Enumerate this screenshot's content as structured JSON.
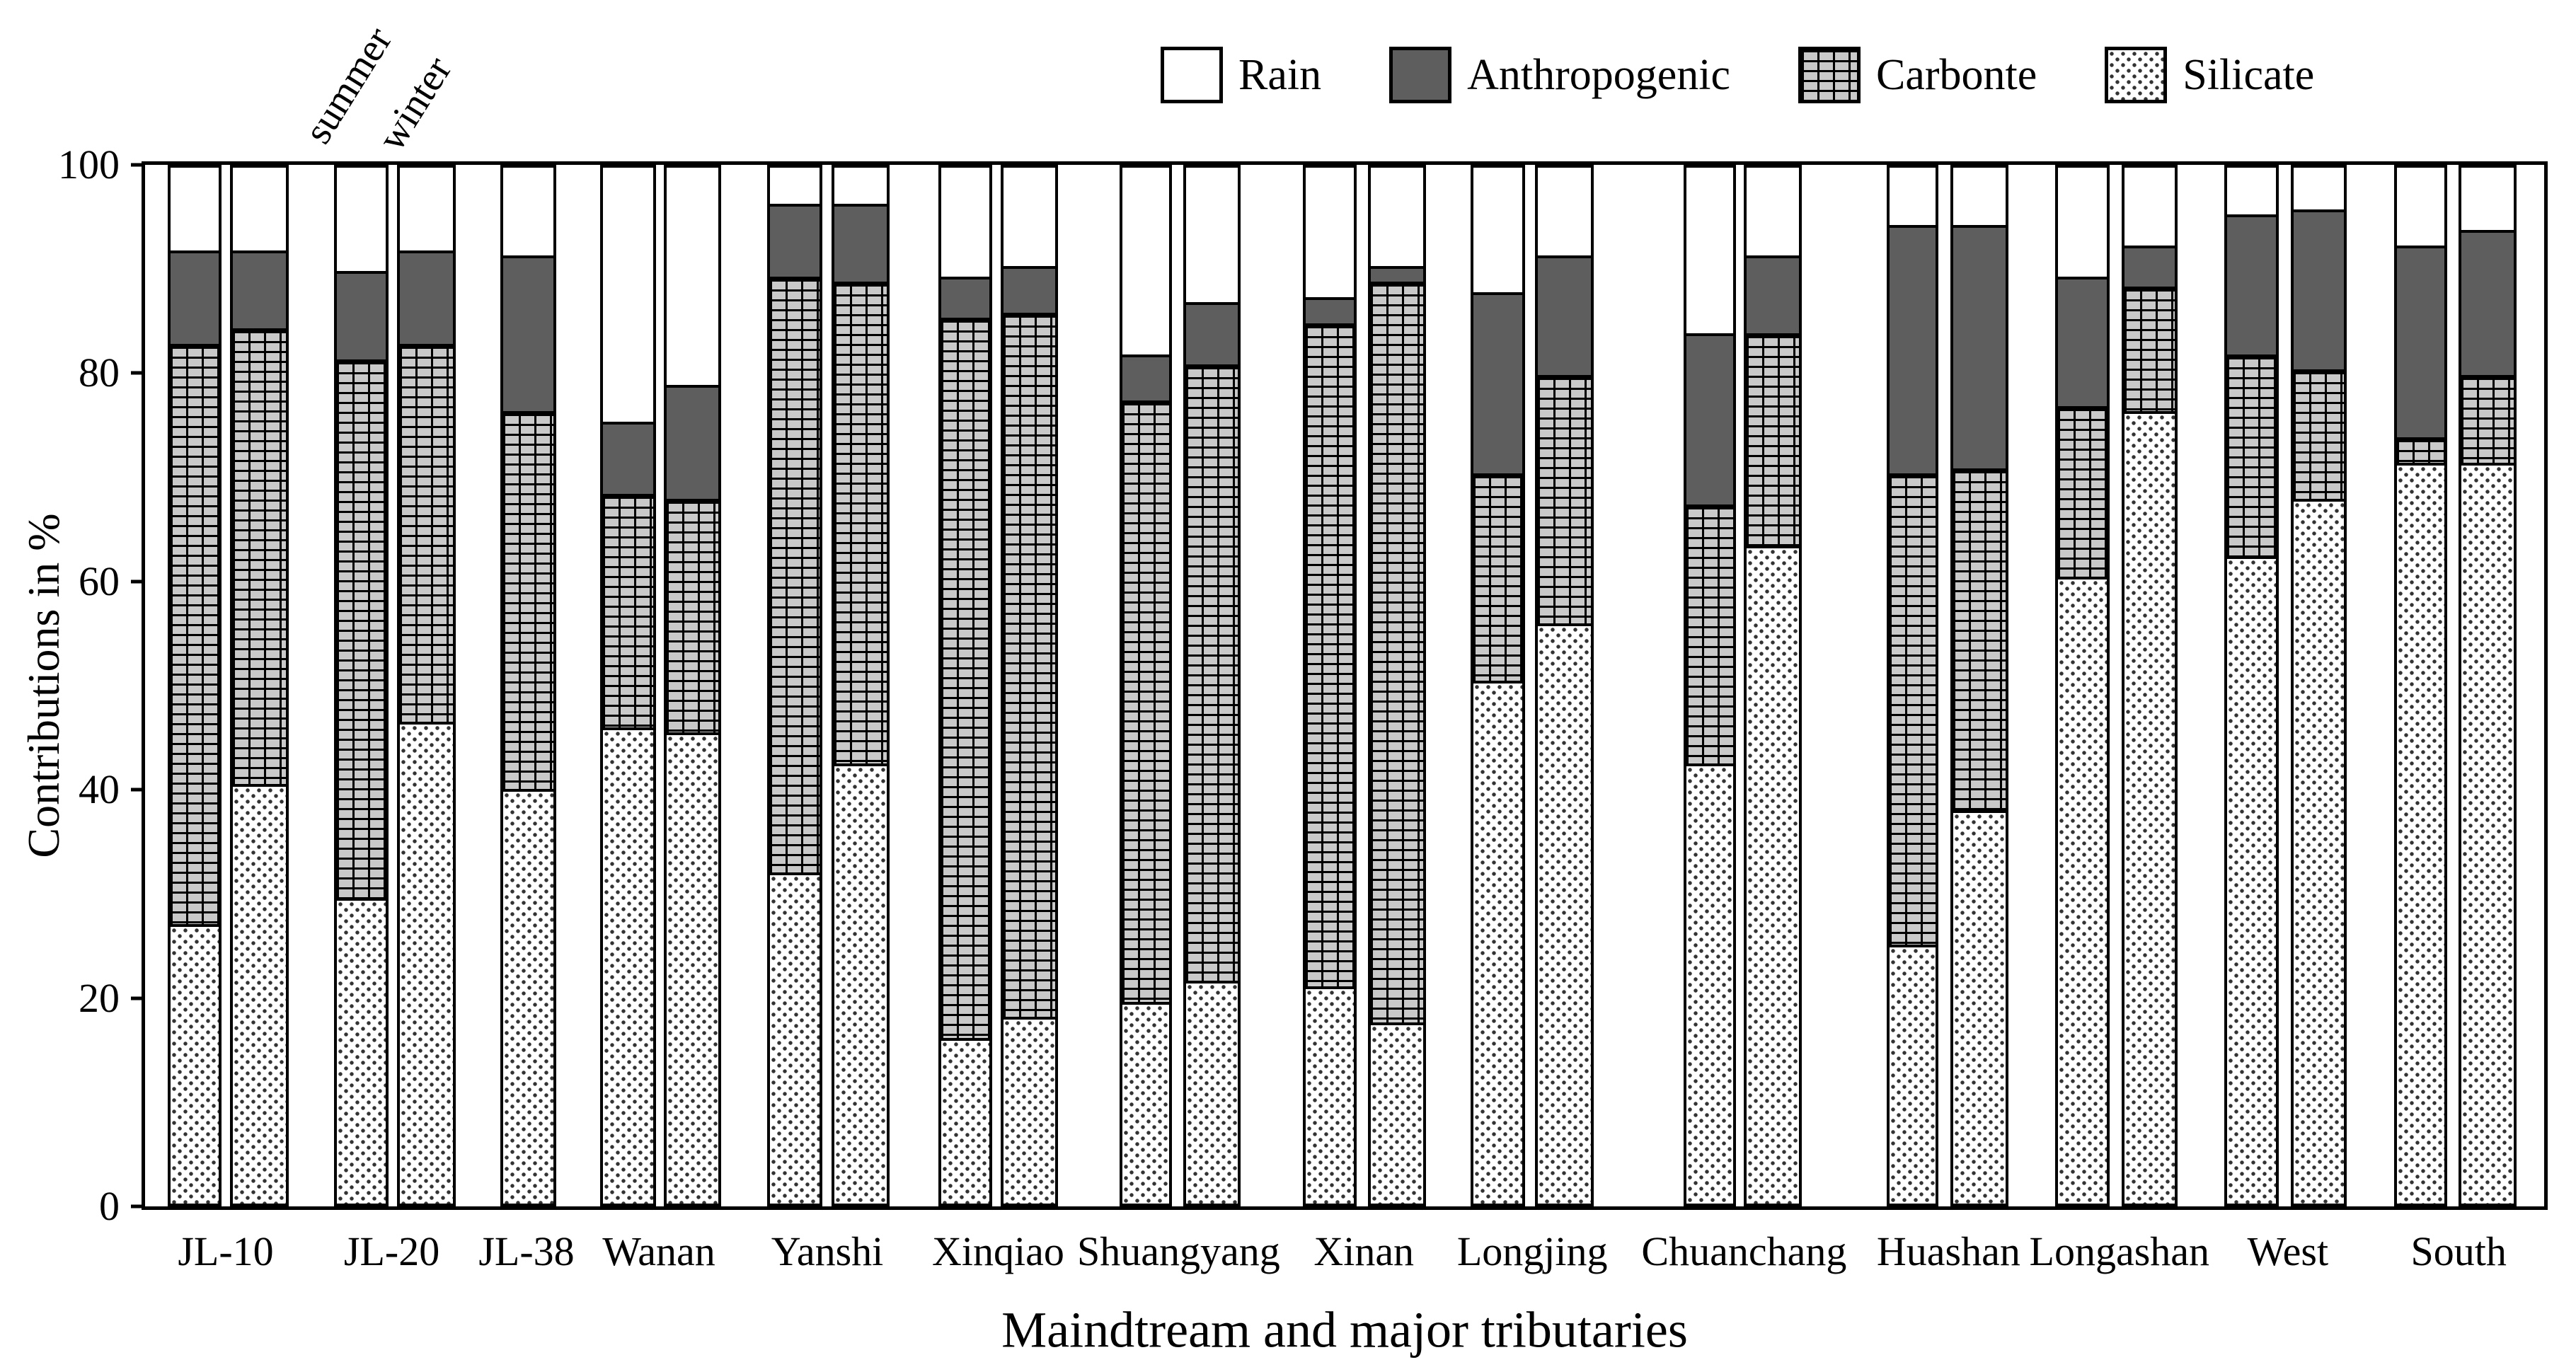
{
  "figure": {
    "season_labels": [
      "summer",
      "winter"
    ],
    "colors": {
      "anthropogenic": "#5e5e5e",
      "carbonate_brick": "#c9c9c9",
      "mortar": "#000000",
      "silicate_dot": "#333333",
      "rain": "#ffffff",
      "frame": "#000000"
    }
  },
  "chart_data": {
    "type": "bar",
    "stacked": true,
    "unit": "%",
    "ylabel": "Contributions in %",
    "xlabel": "Maindtream and major tributaries",
    "ylim": [
      0,
      100
    ],
    "yticks": [
      0,
      20,
      40,
      60,
      80,
      100
    ],
    "grid": false,
    "legend": {
      "position": "top",
      "entries": [
        {
          "label": "Rain",
          "pattern": "solid-white"
        },
        {
          "label": "Anthropogenic",
          "pattern": "solid-gray"
        },
        {
          "label": "Carbonte",
          "pattern": "brick"
        },
        {
          "label": "Silicate",
          "pattern": "dots"
        }
      ]
    },
    "series_order_bottom_to_top": [
      "Silicate",
      "Carbonte",
      "Anthropogenic",
      "Rain"
    ],
    "groups": [
      {
        "label": "JL-10",
        "label_x_pct": 3.5,
        "bars": [
          {
            "season": "summer",
            "x_pct": 0.94,
            "w_pct": 2.25,
            "values": {
              "Silicate": 27.0,
              "Carbonte": 56.0,
              "Anthropogenic": 9.0,
              "Rain": 8.0
            }
          },
          {
            "season": "winter",
            "x_pct": 3.53,
            "w_pct": 2.45,
            "values": {
              "Silicate": 40.5,
              "Carbonte": 44.0,
              "Anthropogenic": 7.5,
              "Rain": 8.0
            }
          }
        ]
      },
      {
        "label": "JL-20",
        "label_x_pct": 10.4,
        "bars": [
          {
            "season": "summer",
            "x_pct": 7.88,
            "w_pct": 2.27,
            "values": {
              "Silicate": 29.5,
              "Carbonte": 52.0,
              "Anthropogenic": 8.5,
              "Rain": 10.0
            }
          },
          {
            "season": "winter",
            "x_pct": 10.5,
            "w_pct": 2.44,
            "values": {
              "Silicate": 46.5,
              "Carbonte": 36.5,
              "Anthropogenic": 9.0,
              "Rain": 8.0
            }
          }
        ]
      },
      {
        "label": "JL-38",
        "label_x_pct": 16.0,
        "bars": [
          {
            "season": "summer",
            "x_pct": 14.82,
            "w_pct": 2.33,
            "values": {
              "Silicate": 40.0,
              "Carbonte": 36.5,
              "Anthropogenic": 15.0,
              "Rain": 8.5
            }
          }
        ]
      },
      {
        "label": "Wanan",
        "label_x_pct": 21.5,
        "bars": [
          {
            "season": "summer",
            "x_pct": 18.97,
            "w_pct": 2.32,
            "values": {
              "Silicate": 46.0,
              "Carbonte": 22.5,
              "Anthropogenic": 7.0,
              "Rain": 24.5
            }
          },
          {
            "season": "winter",
            "x_pct": 21.62,
            "w_pct": 2.38,
            "values": {
              "Silicate": 45.5,
              "Carbonte": 22.5,
              "Anthropogenic": 11.0,
              "Rain": 21.0
            }
          }
        ]
      },
      {
        "label": "Yanshi",
        "label_x_pct": 28.5,
        "bars": [
          {
            "season": "summer",
            "x_pct": 25.94,
            "w_pct": 2.3,
            "values": {
              "Silicate": 32.0,
              "Carbonte": 57.5,
              "Anthropogenic": 7.0,
              "Rain": 3.5
            }
          },
          {
            "season": "winter",
            "x_pct": 28.62,
            "w_pct": 2.41,
            "values": {
              "Silicate": 42.5,
              "Carbonte": 46.5,
              "Anthropogenic": 7.5,
              "Rain": 3.5
            }
          }
        ]
      },
      {
        "label": "Xinqiao",
        "label_x_pct": 35.6,
        "bars": [
          {
            "season": "summer",
            "x_pct": 33.06,
            "w_pct": 2.26,
            "values": {
              "Silicate": 16.0,
              "Carbonte": 69.5,
              "Anthropogenic": 4.0,
              "Rain": 10.5
            }
          },
          {
            "season": "winter",
            "x_pct": 35.65,
            "w_pct": 2.41,
            "values": {
              "Silicate": 18.0,
              "Carbonte": 68.0,
              "Anthropogenic": 4.5,
              "Rain": 9.5
            }
          }
        ]
      },
      {
        "label": "Shuangyang",
        "label_x_pct": 43.1,
        "bars": [
          {
            "season": "summer",
            "x_pct": 40.62,
            "w_pct": 2.17,
            "values": {
              "Silicate": 19.5,
              "Carbonte": 58.0,
              "Anthropogenic": 4.5,
              "Rain": 18.0
            }
          },
          {
            "season": "winter",
            "x_pct": 43.26,
            "w_pct": 2.39,
            "values": {
              "Silicate": 21.5,
              "Carbonte": 59.5,
              "Anthropogenic": 6.0,
              "Rain": 13.0
            }
          }
        ]
      },
      {
        "label": "Xinan",
        "label_x_pct": 50.8,
        "bars": [
          {
            "season": "summer",
            "x_pct": 48.26,
            "w_pct": 2.24,
            "values": {
              "Silicate": 21.0,
              "Carbonte": 64.0,
              "Anthropogenic": 2.5,
              "Rain": 12.5
            }
          },
          {
            "season": "winter",
            "x_pct": 50.97,
            "w_pct": 2.41,
            "values": {
              "Silicate": 17.5,
              "Carbonte": 71.5,
              "Anthropogenic": 1.5,
              "Rain": 9.5
            }
          }
        ]
      },
      {
        "label": "Longjing",
        "label_x_pct": 57.8,
        "bars": [
          {
            "season": "summer",
            "x_pct": 55.26,
            "w_pct": 2.27,
            "values": {
              "Silicate": 50.5,
              "Carbonte": 20.0,
              "Anthropogenic": 17.5,
              "Rain": 12.0
            }
          },
          {
            "season": "winter",
            "x_pct": 57.94,
            "w_pct": 2.44,
            "values": {
              "Silicate": 56.0,
              "Carbonte": 24.0,
              "Anthropogenic": 11.5,
              "Rain": 8.5
            }
          }
        ]
      },
      {
        "label": "Chuanchang",
        "label_x_pct": 66.6,
        "bars": [
          {
            "season": "summer",
            "x_pct": 64.12,
            "w_pct": 2.2,
            "values": {
              "Silicate": 42.5,
              "Carbonte": 25.0,
              "Anthropogenic": 16.5,
              "Rain": 16.0
            }
          },
          {
            "season": "winter",
            "x_pct": 66.65,
            "w_pct": 2.41,
            "values": {
              "Silicate": 63.5,
              "Carbonte": 20.5,
              "Anthropogenic": 7.5,
              "Rain": 8.5
            }
          }
        ]
      },
      {
        "label": "Huashan",
        "label_x_pct": 75.1,
        "bars": [
          {
            "season": "summer",
            "x_pct": 72.59,
            "w_pct": 2.17,
            "values": {
              "Silicate": 25.0,
              "Carbonte": 45.5,
              "Anthropogenic": 24.0,
              "Rain": 5.5
            }
          },
          {
            "season": "winter",
            "x_pct": 75.26,
            "w_pct": 2.42,
            "values": {
              "Silicate": 38.0,
              "Carbonte": 33.0,
              "Anthropogenic": 23.5,
              "Rain": 5.5
            }
          }
        ]
      },
      {
        "label": "Longashan",
        "label_x_pct": 82.2,
        "bars": [
          {
            "season": "summer",
            "x_pct": 79.62,
            "w_pct": 2.26,
            "values": {
              "Silicate": 60.5,
              "Carbonte": 16.5,
              "Anthropogenic": 12.5,
              "Rain": 10.5
            }
          },
          {
            "season": "winter",
            "x_pct": 82.38,
            "w_pct": 2.33,
            "values": {
              "Silicate": 76.5,
              "Carbonte": 12.0,
              "Anthropogenic": 4.0,
              "Rain": 7.5
            }
          }
        ]
      },
      {
        "label": "West",
        "label_x_pct": 89.2,
        "bars": [
          {
            "season": "summer",
            "x_pct": 86.68,
            "w_pct": 2.26,
            "values": {
              "Silicate": 62.5,
              "Carbonte": 19.5,
              "Anthropogenic": 13.5,
              "Rain": 4.5
            }
          },
          {
            "season": "winter",
            "x_pct": 89.44,
            "w_pct": 2.32,
            "values": {
              "Silicate": 68.0,
              "Carbonte": 12.5,
              "Anthropogenic": 15.5,
              "Rain": 4.0
            }
          }
        ]
      },
      {
        "label": "South",
        "label_x_pct": 96.3,
        "bars": [
          {
            "season": "summer",
            "x_pct": 93.74,
            "w_pct": 2.23,
            "values": {
              "Silicate": 71.5,
              "Carbonte": 2.5,
              "Anthropogenic": 18.5,
              "Rain": 7.5
            }
          },
          {
            "season": "winter",
            "x_pct": 96.44,
            "w_pct": 2.41,
            "values": {
              "Silicate": 71.5,
              "Carbonte": 8.5,
              "Anthropogenic": 14.0,
              "Rain": 6.0
            }
          }
        ]
      }
    ]
  }
}
